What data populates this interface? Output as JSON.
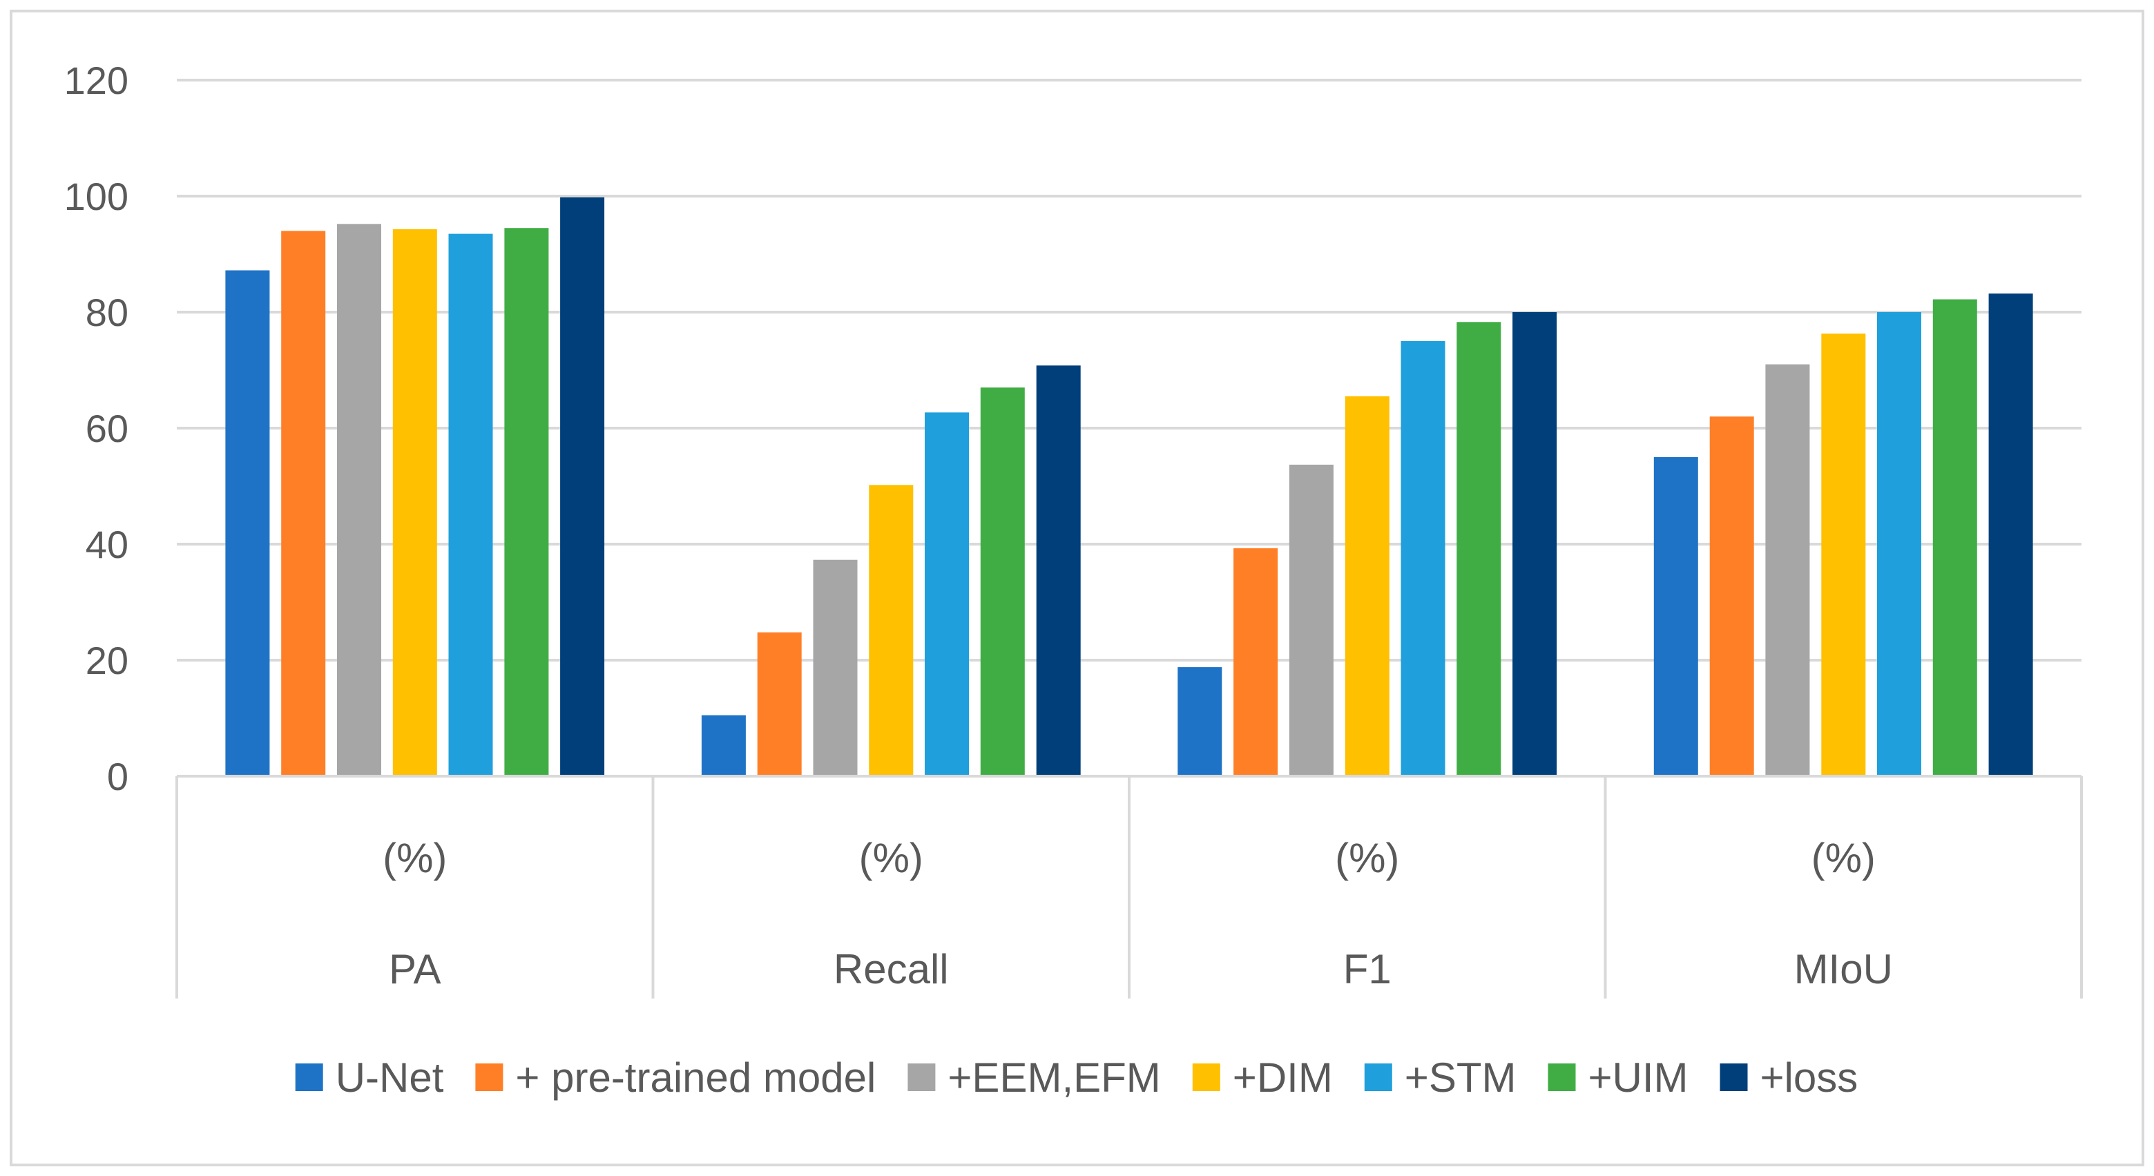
{
  "chart_data": {
    "type": "bar",
    "title": "",
    "xlabel": "",
    "ylabel": "",
    "ylim": [
      0,
      120
    ],
    "yticks": [
      0,
      20,
      40,
      60,
      80,
      100,
      120
    ],
    "grid": true,
    "legend_position": "bottom",
    "categories": [
      {
        "name": "PA",
        "unit": "(%)"
      },
      {
        "name": "Recall",
        "unit": "(%)"
      },
      {
        "name": "F1",
        "unit": "(%)"
      },
      {
        "name": "MIoU",
        "unit": "(%)"
      }
    ],
    "series": [
      {
        "name": "U-Net",
        "color": "#1f73c6",
        "values": [
          87.2,
          10.5,
          18.8,
          55.0
        ]
      },
      {
        "name": "+ pre-trained model",
        "color": "#ff7f27",
        "values": [
          94.0,
          24.8,
          39.3,
          62.0
        ]
      },
      {
        "name": "+EEM,EFM",
        "color": "#a6a6a6",
        "values": [
          95.2,
          37.3,
          53.7,
          71.0
        ]
      },
      {
        "name": "+DIM",
        "color": "#ffc000",
        "values": [
          94.3,
          50.2,
          65.5,
          76.3
        ]
      },
      {
        "name": "+STM",
        "color": "#1f9fdc",
        "values": [
          93.5,
          62.7,
          75.0,
          80.0
        ]
      },
      {
        "name": "+UIM",
        "color": "#40ad44",
        "values": [
          94.5,
          67.0,
          78.3,
          82.2
        ]
      },
      {
        "name": "+loss",
        "color": "#003f7a",
        "values": [
          99.8,
          70.8,
          80.0,
          83.2
        ]
      }
    ]
  },
  "colors": {
    "grid": "#d9d9d9",
    "axis": "#d9d9d9",
    "text": "#595959"
  }
}
